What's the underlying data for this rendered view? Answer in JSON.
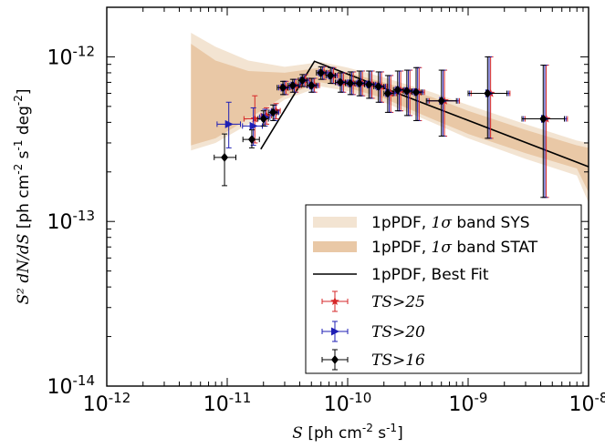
{
  "chart_data": {
    "type": "scatter",
    "xscale": "log",
    "yscale": "log",
    "xlim": [
      1e-12,
      1e-08
    ],
    "ylim": [
      1e-14,
      2e-12
    ],
    "xticks": [
      1e-12,
      1e-11,
      1e-10,
      1e-09,
      1e-08
    ],
    "yticks": [
      1e-14,
      1e-13,
      1e-12
    ],
    "xtick_labels": [
      {
        "base": "10",
        "exp": "-12"
      },
      {
        "base": "10",
        "exp": "-11"
      },
      {
        "base": "10",
        "exp": "-10"
      },
      {
        "base": "10",
        "exp": "-9"
      },
      {
        "base": "10",
        "exp": "-8"
      }
    ],
    "ytick_labels": [
      {
        "base": "10",
        "exp": "-14"
      },
      {
        "base": "10",
        "exp": "-13"
      },
      {
        "base": "10",
        "exp": "-12"
      }
    ],
    "xlabel": {
      "sym": "S",
      "text": " [ph cm",
      "e1": "-2",
      "mid": " s",
      "e2": "-1",
      "end": "]"
    },
    "ylabel": {
      "sym": "S² dN/dS",
      "text": " [ph cm",
      "e1": "-2",
      "mid": " s",
      "e2": "-1",
      "mid2": " deg",
      "e3": "-2",
      "end": "]"
    },
    "legend_position": "lower-right",
    "bands": [
      {
        "name": "1pPDF, 1σ band SYS",
        "legend_prefix": "1pPDF, ",
        "legend_math": "1σ",
        "legend_suffix": " band SYS",
        "color": "#f3e4d2",
        "x": [
          5e-12,
          8e-12,
          1.5e-11,
          3e-11,
          6e-11,
          1e-10,
          2e-10,
          5e-10,
          1e-09,
          3e-09,
          8e-09,
          1e-08
        ],
        "upper": [
          1.4e-12,
          1.15e-12,
          9.5e-13,
          8.7e-13,
          9.3e-13,
          8.6e-13,
          7.5e-13,
          6.1e-13,
          5.1e-13,
          3.9e-13,
          3.1e-13,
          3e-13
        ],
        "lower": [
          2.7e-13,
          3e-13,
          3.9e-13,
          5.5e-13,
          6.6e-13,
          6.2e-13,
          5.3e-13,
          4e-13,
          3.2e-13,
          2.4e-13,
          1.9e-13,
          1.3e-13
        ]
      },
      {
        "name": "1pPDF, 1σ band STAT",
        "legend_prefix": "1pPDF, ",
        "legend_math": "1σ",
        "legend_suffix": " band STAT",
        "color": "#e9c8a6",
        "x": [
          5e-12,
          8e-12,
          1.5e-11,
          3e-11,
          6e-11,
          1e-10,
          2e-10,
          5e-10,
          1e-09,
          3e-09,
          8e-09,
          1e-08
        ],
        "upper": [
          1.2e-12,
          9.5e-13,
          8.2e-13,
          8e-13,
          8.6e-13,
          8e-13,
          7e-13,
          5.7e-13,
          4.7e-13,
          3.6e-13,
          2.9e-13,
          2.8e-13
        ],
        "lower": [
          2.9e-13,
          3.2e-13,
          4.2e-13,
          5.8e-13,
          7e-13,
          6.5e-13,
          5.6e-13,
          4.2e-13,
          3.4e-13,
          2.6e-13,
          2.1e-13,
          1.5e-13
        ]
      }
    ],
    "lines": [
      {
        "name": "1pPDF, Best Fit",
        "legend_text": "1pPDF, Best Fit",
        "color": "#000000",
        "x": [
          1.9e-11,
          5.3e-11,
          1e-08
        ],
        "y": [
          2.75e-13,
          9.4e-13,
          2.15e-13
        ]
      }
    ],
    "series": [
      {
        "name": "TS>25",
        "legend_sym": "TS",
        "legend_rel": ">25",
        "color": "#d62728",
        "marker": "star",
        "xoffset": 1.06,
        "points": [
          {
            "x": 1.6e-11,
            "y": 4.2e-13,
            "xl": 1.3e-11,
            "xh": 1.9e-11,
            "yl": 3e-13,
            "yh": 5.8e-13
          },
          {
            "x": 2e-11,
            "y": 4.4e-13,
            "xl": 1.8e-11,
            "xh": 2.2e-11,
            "yl": 3.9e-13,
            "yh": 4.9e-13
          },
          {
            "x": 2.4e-11,
            "y": 4.7e-13,
            "xl": 2.2e-11,
            "xh": 2.6e-11,
            "yl": 4.2e-13,
            "yh": 5.2e-13
          },
          {
            "x": 2.9e-11,
            "y": 6.5e-13,
            "xl": 2.6e-11,
            "xh": 3.2e-11,
            "yl": 5.9e-13,
            "yh": 7.1e-13
          },
          {
            "x": 3.5e-11,
            "y": 6.7e-13,
            "xl": 3.2e-11,
            "xh": 3.9e-11,
            "yl": 6.1e-13,
            "yh": 7.3e-13
          },
          {
            "x": 4.2e-11,
            "y": 7.2e-13,
            "xl": 3.9e-11,
            "xh": 4.6e-11,
            "yl": 6.6e-13,
            "yh": 7.8e-13
          },
          {
            "x": 5e-11,
            "y": 6.7e-13,
            "xl": 4.6e-11,
            "xh": 5.5e-11,
            "yl": 6.1e-13,
            "yh": 7.4e-13
          },
          {
            "x": 6e-11,
            "y": 8e-13,
            "xl": 5.5e-11,
            "xh": 6.6e-11,
            "yl": 7.3e-13,
            "yh": 8.7e-13
          },
          {
            "x": 7.2e-11,
            "y": 7.7e-13,
            "xl": 6.6e-11,
            "xh": 7.9e-11,
            "yl": 6.9e-13,
            "yh": 8.6e-13
          },
          {
            "x": 8.7e-11,
            "y": 7e-13,
            "xl": 7.9e-11,
            "xh": 9.6e-11,
            "yl": 6.1e-13,
            "yh": 8e-13
          },
          {
            "x": 1.05e-10,
            "y": 6.9e-13,
            "xl": 9.6e-11,
            "xh": 1.15e-10,
            "yl": 5.9e-13,
            "yh": 8.1e-13
          },
          {
            "x": 1.25e-10,
            "y": 6.9e-13,
            "xl": 1.15e-10,
            "xh": 1.38e-10,
            "yl": 5.8e-13,
            "yh": 8.2e-13
          },
          {
            "x": 1.5e-10,
            "y": 6.8e-13,
            "xl": 1.38e-10,
            "xh": 1.65e-10,
            "yl": 5.6e-13,
            "yh": 8.2e-13
          },
          {
            "x": 1.8e-10,
            "y": 6.6e-13,
            "xl": 1.65e-10,
            "xh": 2e-10,
            "yl": 5.3e-13,
            "yh": 8.1e-13
          },
          {
            "x": 2.15e-10,
            "y": 6e-13,
            "xl": 2e-10,
            "xh": 2.4e-10,
            "yl": 4.6e-13,
            "yh": 7.7e-13
          },
          {
            "x": 2.6e-10,
            "y": 6.3e-13,
            "xl": 2.4e-10,
            "xh": 2.9e-10,
            "yl": 4.7e-13,
            "yh": 8.2e-13
          },
          {
            "x": 3.1e-10,
            "y": 6.2e-13,
            "xl": 2.9e-10,
            "xh": 3.4e-10,
            "yl": 4.4e-13,
            "yh": 8.3e-13
          },
          {
            "x": 3.7e-10,
            "y": 6.1e-13,
            "xl": 3.4e-10,
            "xh": 4.1e-10,
            "yl": 4.1e-13,
            "yh": 8.6e-13
          },
          {
            "x": 6e-10,
            "y": 5.4e-13,
            "xl": 4.5e-10,
            "xh": 8e-10,
            "yl": 3.3e-13,
            "yh": 8.3e-13
          },
          {
            "x": 1.45e-09,
            "y": 6e-13,
            "xl": 1e-09,
            "xh": 2.1e-09,
            "yl": 3.2e-13,
            "yh": 1e-12
          },
          {
            "x": 4.2e-09,
            "y": 4.2e-13,
            "xl": 2.8e-09,
            "xh": 6.3e-09,
            "yl": 1.4e-13,
            "yh": 8.9e-13
          }
        ]
      },
      {
        "name": "TS>20",
        "legend_sym": "TS",
        "legend_rel": ">20",
        "color": "#1f1fb4",
        "marker": "triangle-right",
        "xoffset": 1.03,
        "points": [
          {
            "x": 1e-11,
            "y": 3.9e-13,
            "xl": 8e-12,
            "xh": 1.25e-11,
            "yl": 2.8e-13,
            "yh": 5.3e-13
          },
          {
            "x": 1.6e-11,
            "y": 3.8e-13,
            "xl": 1.3e-11,
            "xh": 1.9e-11,
            "yl": 2.9e-13,
            "yh": 4.9e-13
          },
          {
            "x": 2e-11,
            "y": 4.3e-13,
            "xl": 1.8e-11,
            "xh": 2.2e-11,
            "yl": 3.8e-13,
            "yh": 4.8e-13
          },
          {
            "x": 2.4e-11,
            "y": 4.6e-13,
            "xl": 2.2e-11,
            "xh": 2.6e-11,
            "yl": 4.1e-13,
            "yh": 5.1e-13
          },
          {
            "x": 2.9e-11,
            "y": 6.5e-13,
            "xl": 2.6e-11,
            "xh": 3.2e-11,
            "yl": 5.9e-13,
            "yh": 7.1e-13
          },
          {
            "x": 3.5e-11,
            "y": 6.7e-13,
            "xl": 3.2e-11,
            "xh": 3.9e-11,
            "yl": 6.1e-13,
            "yh": 7.3e-13
          },
          {
            "x": 4.2e-11,
            "y": 7.2e-13,
            "xl": 3.9e-11,
            "xh": 4.6e-11,
            "yl": 6.6e-13,
            "yh": 7.8e-13
          },
          {
            "x": 5e-11,
            "y": 6.7e-13,
            "xl": 4.6e-11,
            "xh": 5.5e-11,
            "yl": 6.1e-13,
            "yh": 7.4e-13
          },
          {
            "x": 6e-11,
            "y": 8e-13,
            "xl": 5.5e-11,
            "xh": 6.6e-11,
            "yl": 7.3e-13,
            "yh": 8.7e-13
          },
          {
            "x": 7.2e-11,
            "y": 7.7e-13,
            "xl": 6.6e-11,
            "xh": 7.9e-11,
            "yl": 6.9e-13,
            "yh": 8.6e-13
          },
          {
            "x": 8.7e-11,
            "y": 7e-13,
            "xl": 7.9e-11,
            "xh": 9.6e-11,
            "yl": 6.1e-13,
            "yh": 8e-13
          },
          {
            "x": 1.05e-10,
            "y": 6.9e-13,
            "xl": 9.6e-11,
            "xh": 1.15e-10,
            "yl": 5.9e-13,
            "yh": 8.1e-13
          },
          {
            "x": 1.25e-10,
            "y": 6.9e-13,
            "xl": 1.15e-10,
            "xh": 1.38e-10,
            "yl": 5.8e-13,
            "yh": 8.2e-13
          },
          {
            "x": 1.5e-10,
            "y": 6.8e-13,
            "xl": 1.38e-10,
            "xh": 1.65e-10,
            "yl": 5.6e-13,
            "yh": 8.2e-13
          },
          {
            "x": 1.8e-10,
            "y": 6.6e-13,
            "xl": 1.65e-10,
            "xh": 2e-10,
            "yl": 5.3e-13,
            "yh": 8.1e-13
          },
          {
            "x": 2.15e-10,
            "y": 6e-13,
            "xl": 2e-10,
            "xh": 2.4e-10,
            "yl": 4.6e-13,
            "yh": 7.7e-13
          },
          {
            "x": 2.6e-10,
            "y": 6.3e-13,
            "xl": 2.4e-10,
            "xh": 2.9e-10,
            "yl": 4.7e-13,
            "yh": 8.2e-13
          },
          {
            "x": 3.1e-10,
            "y": 6.2e-13,
            "xl": 2.9e-10,
            "xh": 3.4e-10,
            "yl": 4.4e-13,
            "yh": 8.3e-13
          },
          {
            "x": 3.7e-10,
            "y": 6.1e-13,
            "xl": 3.4e-10,
            "xh": 4.1e-10,
            "yl": 4.1e-13,
            "yh": 8.6e-13
          },
          {
            "x": 6e-10,
            "y": 5.4e-13,
            "xl": 4.5e-10,
            "xh": 8e-10,
            "yl": 3.3e-13,
            "yh": 8.3e-13
          },
          {
            "x": 1.45e-09,
            "y": 6e-13,
            "xl": 1e-09,
            "xh": 2.1e-09,
            "yl": 3.2e-13,
            "yh": 1e-12
          },
          {
            "x": 4.2e-09,
            "y": 4.2e-13,
            "xl": 2.8e-09,
            "xh": 6.3e-09,
            "yl": 1.4e-13,
            "yh": 8.9e-13
          }
        ]
      },
      {
        "name": "TS>16",
        "legend_sym": "TS",
        "legend_rel": ">16",
        "color": "#000000",
        "marker": "diamond",
        "xoffset": 1.0,
        "points": [
          {
            "x": 9.5e-12,
            "y": 2.45e-13,
            "xl": 7.8e-12,
            "xh": 1.18e-11,
            "yl": 1.65e-13,
            "yh": 3.4e-13
          },
          {
            "x": 1.6e-11,
            "y": 3.15e-13,
            "xl": 1.35e-11,
            "xh": 1.85e-11,
            "yl": 2.8e-13,
            "yh": 3.6e-13
          },
          {
            "x": 2e-11,
            "y": 4.2e-13,
            "xl": 1.8e-11,
            "xh": 2.2e-11,
            "yl": 3.8e-13,
            "yh": 4.7e-13
          },
          {
            "x": 2.4e-11,
            "y": 4.6e-13,
            "xl": 2.2e-11,
            "xh": 2.6e-11,
            "yl": 4.1e-13,
            "yh": 5.1e-13
          },
          {
            "x": 2.9e-11,
            "y": 6.5e-13,
            "xl": 2.6e-11,
            "xh": 3.2e-11,
            "yl": 5.9e-13,
            "yh": 7.1e-13
          },
          {
            "x": 3.5e-11,
            "y": 6.7e-13,
            "xl": 3.2e-11,
            "xh": 3.9e-11,
            "yl": 6.1e-13,
            "yh": 7.3e-13
          },
          {
            "x": 4.2e-11,
            "y": 7.2e-13,
            "xl": 3.9e-11,
            "xh": 4.6e-11,
            "yl": 6.6e-13,
            "yh": 7.8e-13
          },
          {
            "x": 5e-11,
            "y": 6.7e-13,
            "xl": 4.6e-11,
            "xh": 5.5e-11,
            "yl": 6.1e-13,
            "yh": 7.4e-13
          },
          {
            "x": 6e-11,
            "y": 8e-13,
            "xl": 5.5e-11,
            "xh": 6.6e-11,
            "yl": 7.3e-13,
            "yh": 8.7e-13
          },
          {
            "x": 7.2e-11,
            "y": 7.7e-13,
            "xl": 6.6e-11,
            "xh": 7.9e-11,
            "yl": 6.9e-13,
            "yh": 8.6e-13
          },
          {
            "x": 8.7e-11,
            "y": 7e-13,
            "xl": 7.9e-11,
            "xh": 9.6e-11,
            "yl": 6.1e-13,
            "yh": 8e-13
          },
          {
            "x": 1.05e-10,
            "y": 6.9e-13,
            "xl": 9.6e-11,
            "xh": 1.15e-10,
            "yl": 5.9e-13,
            "yh": 8.1e-13
          },
          {
            "x": 1.25e-10,
            "y": 6.9e-13,
            "xl": 1.15e-10,
            "xh": 1.38e-10,
            "yl": 5.8e-13,
            "yh": 8.2e-13
          },
          {
            "x": 1.5e-10,
            "y": 6.8e-13,
            "xl": 1.38e-10,
            "xh": 1.65e-10,
            "yl": 5.6e-13,
            "yh": 8.2e-13
          },
          {
            "x": 1.8e-10,
            "y": 6.6e-13,
            "xl": 1.65e-10,
            "xh": 2e-10,
            "yl": 5.3e-13,
            "yh": 8.1e-13
          },
          {
            "x": 2.15e-10,
            "y": 6e-13,
            "xl": 2e-10,
            "xh": 2.4e-10,
            "yl": 4.6e-13,
            "yh": 7.7e-13
          },
          {
            "x": 2.6e-10,
            "y": 6.3e-13,
            "xl": 2.4e-10,
            "xh": 2.9e-10,
            "yl": 4.7e-13,
            "yh": 8.2e-13
          },
          {
            "x": 3.1e-10,
            "y": 6.2e-13,
            "xl": 2.9e-10,
            "xh": 3.4e-10,
            "yl": 4.4e-13,
            "yh": 8.3e-13
          },
          {
            "x": 3.7e-10,
            "y": 6.1e-13,
            "xl": 3.4e-10,
            "xh": 4.1e-10,
            "yl": 4.1e-13,
            "yh": 8.6e-13
          },
          {
            "x": 6e-10,
            "y": 5.4e-13,
            "xl": 4.5e-10,
            "xh": 8e-10,
            "yl": 3.3e-13,
            "yh": 8.3e-13
          },
          {
            "x": 1.45e-09,
            "y": 6e-13,
            "xl": 1e-09,
            "xh": 2.1e-09,
            "yl": 3.2e-13,
            "yh": 1e-12
          },
          {
            "x": 4.2e-09,
            "y": 4.2e-13,
            "xl": 2.8e-09,
            "xh": 6.3e-09,
            "yl": 1.4e-13,
            "yh": 8.9e-13
          }
        ]
      }
    ]
  }
}
